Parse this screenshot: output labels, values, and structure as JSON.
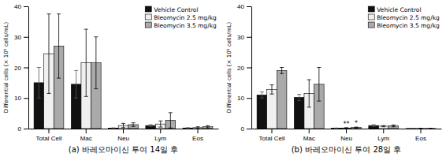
{
  "chart_data": [
    {
      "type": "bar",
      "title": "(a) 바레오마이신 투여 14일 후",
      "ylabel": "Differential cells  (× 10⁵ cells/mL)",
      "categories": [
        "Total Cell",
        "Mac",
        "Neu",
        "Lym",
        "Eos"
      ],
      "series": [
        {
          "name": "Vehicle Control",
          "color": "#111111",
          "values": [
            15.0,
            14.5,
            0.15,
            1.0,
            0.2
          ],
          "errors": [
            5.0,
            4.5,
            0.1,
            0.3,
            0.1
          ]
        },
        {
          "name": "Bleomycin 2.5 mg/kg",
          "color": "#f0f0f0",
          "values": [
            24.5,
            21.5,
            1.0,
            1.5,
            0.3
          ],
          "errors": [
            13.0,
            11.0,
            0.7,
            1.0,
            0.3
          ]
        },
        {
          "name": "Bleomycin 3.5 mg/kg",
          "color": "#aaaaaa",
          "values": [
            27.0,
            21.5,
            1.3,
            2.7,
            0.6
          ],
          "errors": [
            10.5,
            8.5,
            0.6,
            2.5,
            0.35
          ]
        }
      ],
      "ylim": [
        0,
        40
      ],
      "yticks": [
        0,
        10,
        20,
        30,
        40
      ],
      "grid": false,
      "legend": "upper right"
    },
    {
      "type": "bar",
      "title": "(b) 바레오마이신 투여 28일 후",
      "ylabel": "Differential cells  (× 10⁵ cells/mL)",
      "categories": [
        "Total Cell",
        "Mac",
        "Neu",
        "Lym",
        "Eos"
      ],
      "series": [
        {
          "name": "Vehicle Control",
          "color": "#111111",
          "values": [
            11.0,
            10.2,
            0.15,
            1.0,
            0.05
          ],
          "errors": [
            1.0,
            1.0,
            0.05,
            0.3,
            0.02
          ]
        },
        {
          "name": "Bleomycin 2.5 mg/kg",
          "color": "#f0f0f0",
          "values": [
            12.8,
            11.5,
            0.2,
            0.8,
            0.05
          ],
          "errors": [
            1.5,
            4.5,
            0.1,
            0.2,
            0.02
          ]
        },
        {
          "name": "Bleomycin 3.5 mg/kg",
          "color": "#aaaaaa",
          "values": [
            19.0,
            14.5,
            0.35,
            0.9,
            0.05
          ],
          "errors": [
            1.0,
            5.5,
            0.15,
            0.3,
            0.02
          ]
        }
      ],
      "annotations": [
        {
          "text": "**",
          "category": "Neu",
          "series": "Bleomycin 2.5 mg/kg"
        },
        {
          "text": "*",
          "category": "Neu",
          "series": "Bleomycin 3.5 mg/kg"
        }
      ],
      "ylim": [
        0,
        40
      ],
      "yticks": [
        0,
        10,
        20,
        30,
        40
      ],
      "grid": false,
      "legend": "upper right"
    }
  ]
}
